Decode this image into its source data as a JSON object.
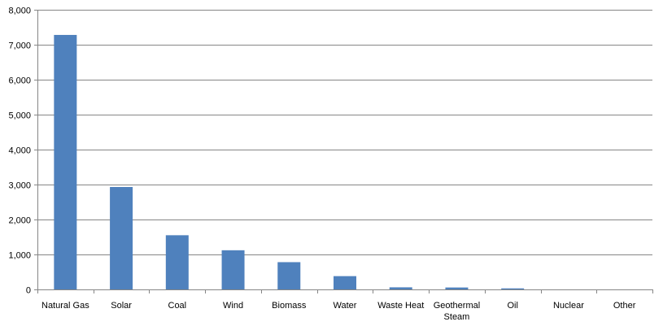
{
  "chart_data": {
    "type": "bar",
    "title": "",
    "xlabel": "",
    "ylabel": "",
    "ylim": [
      0,
      8000
    ],
    "y_ticks": [
      0,
      1000,
      2000,
      3000,
      4000,
      5000,
      6000,
      7000,
      8000
    ],
    "y_tick_labels": [
      "0",
      "1,000",
      "2,000",
      "3,000",
      "4,000",
      "5,000",
      "6,000",
      "7,000",
      "8,000"
    ],
    "grid": true,
    "legend": "none",
    "bar_color": "#4F81BD",
    "categories": [
      [
        "Natural Gas"
      ],
      [
        "Solar"
      ],
      [
        "Coal"
      ],
      [
        "Wind"
      ],
      [
        "Biomass"
      ],
      [
        "Water"
      ],
      [
        "Waste Heat"
      ],
      [
        "Geothermal",
        "Steam"
      ],
      [
        "Oil"
      ],
      [
        "Nuclear"
      ],
      [
        "Other"
      ]
    ],
    "values": [
      7280,
      2930,
      1550,
      1120,
      780,
      380,
      60,
      55,
      30,
      0,
      0
    ]
  }
}
